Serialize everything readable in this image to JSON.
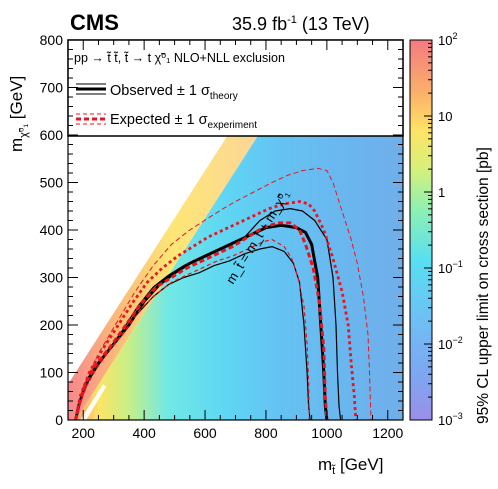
{
  "chart_data": {
    "type": "heatmap",
    "experiment": "CMS",
    "luminosity": "35.9",
    "luminosity_unit": "fb",
    "energy": "(13 TeV)",
    "process": "pp → t̃ t̃, t̃ → t χ̃⁰₁",
    "process_note": "NLO+NLL exclusion",
    "xlabel": "[GeV]",
    "ylabel": "[GeV]",
    "zlabel": "95% CL upper limit on cross section [pb]",
    "xlim": [
      150,
      1250
    ],
    "ylim": [
      0,
      800
    ],
    "zlim": [
      0.001,
      100
    ],
    "zscale": "log",
    "x_ticks": [
      200,
      400,
      600,
      800,
      1000,
      1200
    ],
    "y_ticks": [
      0,
      100,
      200,
      300,
      400,
      500,
      600,
      700,
      800
    ],
    "z_ticks": [
      {
        "v": 100,
        "base": "10",
        "exp": "2"
      },
      {
        "v": 10,
        "base": "10",
        "exp": ""
      },
      {
        "v": 1,
        "base": "1",
        "exp": ""
      },
      {
        "v": 0.1,
        "base": "10",
        "exp": "−1"
      },
      {
        "v": 0.01,
        "base": "10",
        "exp": "−2"
      },
      {
        "v": 0.001,
        "base": "10",
        "exp": "−3"
      }
    ],
    "diagonal_label": "m_t̃ = m_t + m_χ̃⁰₁",
    "legend": {
      "observed": "Observed ± 1 σ",
      "observed_sub": "theory",
      "expected": "Expected ± 1 σ",
      "expected_sub": "experiment"
    },
    "series": [
      {
        "name": "observed",
        "style": "thick-black",
        "points": [
          [
            175,
            0
          ],
          [
            185,
            30
          ],
          [
            200,
            60
          ],
          [
            220,
            90
          ],
          [
            250,
            120
          ],
          [
            300,
            160
          ],
          [
            350,
            200
          ],
          [
            400,
            250
          ],
          [
            450,
            285
          ],
          [
            500,
            310
          ],
          [
            550,
            330
          ],
          [
            600,
            345
          ],
          [
            650,
            360
          ],
          [
            700,
            375
          ],
          [
            750,
            390
          ],
          [
            800,
            405
          ],
          [
            850,
            410
          ],
          [
            900,
            405
          ],
          [
            930,
            395
          ],
          [
            950,
            370
          ],
          [
            970,
            300
          ],
          [
            980,
            200
          ],
          [
            990,
            100
          ],
          [
            995,
            30
          ],
          [
            1000,
            0
          ]
        ]
      },
      {
        "name": "observed +1 sigma theory",
        "style": "thin-black",
        "points": [
          [
            175,
            0
          ],
          [
            190,
            40
          ],
          [
            210,
            75
          ],
          [
            240,
            105
          ],
          [
            280,
            145
          ],
          [
            330,
            190
          ],
          [
            380,
            240
          ],
          [
            430,
            280
          ],
          [
            480,
            305
          ],
          [
            530,
            325
          ],
          [
            580,
            340
          ],
          [
            630,
            355
          ],
          [
            680,
            370
          ],
          [
            730,
            385
          ],
          [
            780,
            420
          ],
          [
            830,
            440
          ],
          [
            880,
            445
          ],
          [
            920,
            440
          ],
          [
            960,
            420
          ],
          [
            1000,
            380
          ],
          [
            1020,
            300
          ],
          [
            1030,
            200
          ],
          [
            1035,
            100
          ],
          [
            1040,
            30
          ],
          [
            1045,
            0
          ]
        ]
      },
      {
        "name": "observed -1 sigma theory",
        "style": "thin-black",
        "points": [
          [
            175,
            0
          ],
          [
            180,
            20
          ],
          [
            195,
            50
          ],
          [
            215,
            80
          ],
          [
            240,
            110
          ],
          [
            280,
            145
          ],
          [
            330,
            185
          ],
          [
            380,
            225
          ],
          [
            430,
            260
          ],
          [
            480,
            285
          ],
          [
            530,
            300
          ],
          [
            580,
            310
          ],
          [
            630,
            325
          ],
          [
            680,
            335
          ],
          [
            730,
            350
          ],
          [
            780,
            360
          ],
          [
            820,
            365
          ],
          [
            860,
            355
          ],
          [
            890,
            330
          ],
          [
            910,
            290
          ],
          [
            925,
            200
          ],
          [
            935,
            100
          ],
          [
            940,
            30
          ],
          [
            945,
            0
          ]
        ]
      },
      {
        "name": "expected",
        "style": "thick-red-dashed",
        "points": [
          [
            175,
            0
          ],
          [
            190,
            40
          ],
          [
            210,
            80
          ],
          [
            240,
            115
          ],
          [
            290,
            155
          ],
          [
            340,
            200
          ],
          [
            390,
            245
          ],
          [
            440,
            280
          ],
          [
            490,
            300
          ],
          [
            540,
            320
          ],
          [
            590,
            335
          ],
          [
            640,
            350
          ],
          [
            690,
            365
          ],
          [
            740,
            385
          ],
          [
            790,
            405
          ],
          [
            840,
            415
          ],
          [
            880,
            415
          ],
          [
            910,
            400
          ],
          [
            930,
            370
          ],
          [
            955,
            320
          ],
          [
            975,
            250
          ],
          [
            990,
            150
          ],
          [
            995,
            50
          ],
          [
            1000,
            0
          ]
        ]
      },
      {
        "name": "expected +1 sigma experiment",
        "style": "thick-red-dotted",
        "points": [
          [
            175,
            0
          ],
          [
            190,
            50
          ],
          [
            220,
            100
          ],
          [
            260,
            145
          ],
          [
            310,
            195
          ],
          [
            360,
            245
          ],
          [
            410,
            290
          ],
          [
            460,
            320
          ],
          [
            510,
            345
          ],
          [
            560,
            365
          ],
          [
            610,
            385
          ],
          [
            660,
            400
          ],
          [
            710,
            415
          ],
          [
            760,
            430
          ],
          [
            810,
            445
          ],
          [
            860,
            455
          ],
          [
            910,
            460
          ],
          [
            940,
            455
          ],
          [
            960,
            440
          ],
          [
            990,
            400
          ],
          [
            1020,
            340
          ],
          [
            1050,
            270
          ],
          [
            1070,
            200
          ],
          [
            1080,
            120
          ],
          [
            1090,
            50
          ],
          [
            1095,
            0
          ]
        ]
      },
      {
        "name": "expected -1 sigma experiment",
        "style": "thin-red-dashed",
        "points": [
          [
            175,
            0
          ],
          [
            190,
            35
          ],
          [
            210,
            70
          ],
          [
            240,
            105
          ],
          [
            290,
            150
          ],
          [
            340,
            190
          ],
          [
            390,
            235
          ],
          [
            440,
            265
          ],
          [
            490,
            290
          ],
          [
            540,
            305
          ],
          [
            590,
            320
          ],
          [
            640,
            335
          ],
          [
            690,
            345
          ],
          [
            740,
            360
          ],
          [
            790,
            375
          ],
          [
            820,
            380
          ],
          [
            860,
            365
          ],
          [
            885,
            340
          ],
          [
            905,
            300
          ],
          [
            925,
            240
          ],
          [
            935,
            160
          ],
          [
            940,
            80
          ],
          [
            942,
            0
          ]
        ]
      },
      {
        "name": "expected +2 sigma experiment",
        "style": "thin-red-dashed-outer",
        "points": [
          [
            175,
            0
          ],
          [
            200,
            70
          ],
          [
            250,
            140
          ],
          [
            310,
            205
          ],
          [
            370,
            270
          ],
          [
            430,
            325
          ],
          [
            490,
            370
          ],
          [
            550,
            400
          ],
          [
            610,
            425
          ],
          [
            660,
            445
          ],
          [
            700,
            460
          ],
          [
            760,
            480
          ],
          [
            820,
            500
          ],
          [
            870,
            515
          ],
          [
            920,
            525
          ],
          [
            970,
            530
          ],
          [
            1000,
            525
          ],
          [
            1020,
            500
          ],
          [
            1040,
            460
          ],
          [
            1060,
            420
          ],
          [
            1080,
            380
          ],
          [
            1100,
            330
          ],
          [
            1120,
            260
          ],
          [
            1135,
            180
          ],
          [
            1140,
            100
          ],
          [
            1145,
            0
          ]
        ]
      }
    ]
  }
}
